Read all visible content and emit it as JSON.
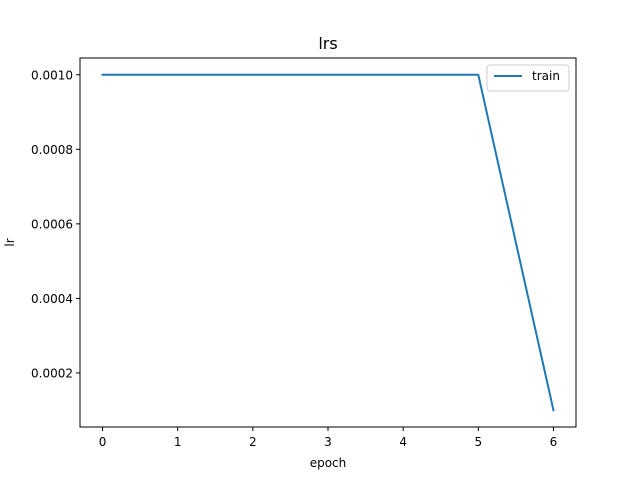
{
  "chart_data": {
    "type": "line",
    "title": "lrs",
    "xlabel": "epoch",
    "ylabel": "lr",
    "x": [
      0,
      1,
      2,
      3,
      4,
      5,
      6
    ],
    "xticks": [
      "0",
      "1",
      "2",
      "3",
      "4",
      "5",
      "6"
    ],
    "yticks": [
      0.0002,
      0.0004,
      0.0006,
      0.0008,
      0.001
    ],
    "ytick_labels": [
      "0.0002",
      "0.0004",
      "0.0006",
      "0.0008",
      "0.0010"
    ],
    "xlim": [
      -0.3,
      6.3
    ],
    "ylim": [
      5.5e-05,
      0.001045
    ],
    "grid": false,
    "legend_position": "top-right",
    "series": [
      {
        "name": "train",
        "color": "#1f77b4",
        "values": [
          0.001,
          0.001,
          0.001,
          0.001,
          0.001,
          0.001,
          0.0001
        ]
      }
    ]
  }
}
